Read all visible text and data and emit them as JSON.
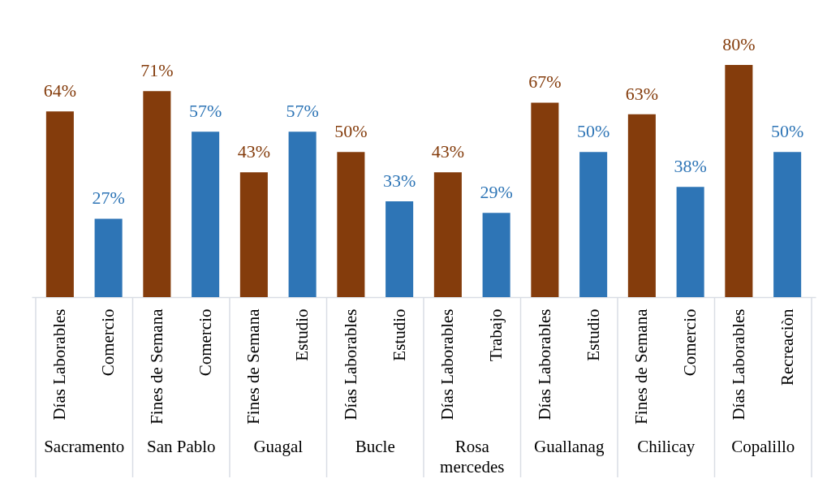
{
  "chart_data": {
    "type": "bar",
    "categories": [
      "Días Laborables",
      "Comercio",
      "Fines de Semana",
      "Comercio",
      "Fines de Semana",
      "Estudio",
      "Días Laborables",
      "Estudio",
      "Días Laborables",
      "Trabajo",
      "Días Laborables",
      "Estudio",
      "Fines de Semana",
      "Comercio",
      "Días Laborables",
      "Recreaciòn"
    ],
    "values": [
      64,
      27,
      71,
      57,
      43,
      57,
      50,
      33,
      43,
      29,
      67,
      50,
      63,
      38,
      80,
      50
    ],
    "colors": [
      "#843c0c",
      "#2e75b6",
      "#843c0c",
      "#2e75b6",
      "#843c0c",
      "#2e75b6",
      "#843c0c",
      "#2e75b6",
      "#843c0c",
      "#2e75b6",
      "#843c0c",
      "#2e75b6",
      "#843c0c",
      "#2e75b6",
      "#843c0c",
      "#2e75b6"
    ],
    "value_labels": [
      "64%",
      "27%",
      "71%",
      "57%",
      "43%",
      "57%",
      "50%",
      "33%",
      "43%",
      "29%",
      "67%",
      "50%",
      "63%",
      "38%",
      "80%",
      "50%"
    ],
    "annotations": [
      "Sacramento",
      "San Pablo",
      "Guagal",
      "Bucle",
      "Rosa mercedes",
      "Guallanag",
      "Chilicay",
      "Copalillo"
    ],
    "tick_labels": "x"
  }
}
